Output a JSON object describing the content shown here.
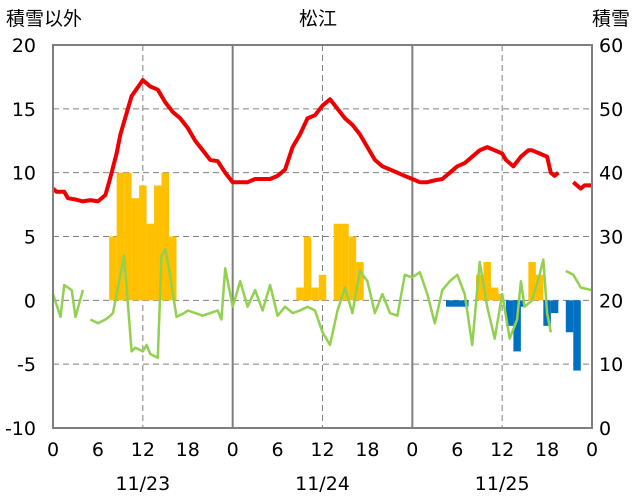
{
  "chart_data": {
    "type": "line",
    "title": "松江",
    "left_axis_label": "積雪以外",
    "right_axis_label": "積雪",
    "left_ylim": [
      -10,
      20
    ],
    "left_yticks": [
      "20",
      "15",
      "10",
      "5",
      "0",
      "-5",
      "-10"
    ],
    "right_ylim": [
      0,
      60
    ],
    "right_yticks": [
      "60",
      "50",
      "40",
      "30",
      "20",
      "10",
      "0"
    ],
    "x_range_hours": [
      0,
      72
    ],
    "x_tick_labels": [
      "0",
      "6",
      "12",
      "18",
      "0",
      "6",
      "12",
      "18",
      "0",
      "6",
      "12",
      "18",
      "0"
    ],
    "dates": [
      "11/23",
      "11/24",
      "11/25"
    ],
    "grid": true,
    "colors": {
      "snow_depth": "#ee0000",
      "temperature": "#92d050",
      "increase": "#ffc000",
      "decrease": "#0070c0",
      "frame": "#7f7f7f",
      "grid": "#808080"
    },
    "series": [
      {
        "axis": "right",
        "role": "snow depth (red line)",
        "points": [
          [
            0,
            37.5
          ],
          [
            0.5,
            37.0
          ],
          [
            1.5,
            37.0
          ],
          [
            2,
            36.0
          ],
          [
            3,
            35.8
          ],
          [
            4,
            35.5
          ],
          [
            5,
            35.7
          ],
          [
            6,
            35.5
          ],
          [
            7,
            36.5
          ],
          [
            7.5,
            38.5
          ],
          [
            8.5,
            43.0
          ],
          [
            9,
            46.0
          ],
          [
            10.5,
            52.0
          ],
          [
            12,
            54.5
          ],
          [
            13,
            53.5
          ],
          [
            14,
            53.0
          ],
          [
            15,
            51.0
          ],
          [
            16,
            49.5
          ],
          [
            17,
            48.5
          ],
          [
            18,
            47.0
          ],
          [
            19,
            45.0
          ],
          [
            20,
            43.5
          ],
          [
            21,
            42.0
          ],
          [
            22,
            41.8
          ],
          [
            23,
            40.0
          ],
          [
            24,
            38.5
          ],
          [
            25,
            38.5
          ],
          [
            26,
            38.5
          ],
          [
            27,
            39.0
          ],
          [
            28,
            39.0
          ],
          [
            29,
            39.0
          ],
          [
            30,
            39.5
          ],
          [
            31,
            40.5
          ],
          [
            32,
            44.0
          ],
          [
            33,
            46.0
          ],
          [
            34,
            48.5
          ],
          [
            35,
            49.0
          ],
          [
            36,
            50.5
          ],
          [
            37,
            51.5
          ],
          [
            38,
            50.0
          ],
          [
            39,
            48.5
          ],
          [
            40,
            47.5
          ],
          [
            41,
            46.0
          ],
          [
            42,
            44.0
          ],
          [
            43,
            42.0
          ],
          [
            44,
            41.0
          ],
          [
            45,
            40.5
          ],
          [
            46,
            40.0
          ],
          [
            47,
            39.5
          ],
          [
            48,
            39.0
          ],
          [
            49,
            38.5
          ],
          [
            50,
            38.5
          ],
          [
            51,
            38.8
          ],
          [
            52,
            39.0
          ],
          [
            53,
            40.0
          ],
          [
            54,
            41.0
          ],
          [
            55,
            41.5
          ],
          [
            56,
            42.5
          ],
          [
            57,
            43.5
          ],
          [
            58,
            44.0
          ],
          [
            59,
            43.5
          ],
          [
            60,
            43.0
          ],
          [
            60.5,
            42.0
          ],
          [
            61.5,
            41.0
          ],
          [
            62.5,
            42.5
          ],
          [
            63,
            43.0
          ],
          [
            63.5,
            43.5
          ],
          [
            64,
            43.5
          ],
          [
            65,
            43.0
          ],
          [
            66,
            42.5
          ],
          [
            66.5,
            40.0
          ],
          [
            67,
            39.5
          ],
          [
            67.5,
            40.0
          ],
          null,
          [
            69.5,
            38.5
          ],
          [
            70.5,
            37.5
          ],
          [
            71,
            38.0
          ],
          [
            72,
            38.0
          ]
        ]
      },
      {
        "axis": "left",
        "role": "temperature (green line)",
        "points": [
          [
            0,
            0.5
          ],
          [
            1,
            -1.3
          ],
          [
            1.5,
            1.2
          ],
          [
            2.5,
            0.8
          ],
          [
            3,
            -1.3
          ],
          [
            4,
            0.8
          ],
          null,
          [
            5,
            -1.5
          ],
          [
            6,
            -1.8
          ],
          [
            7,
            -1.5
          ],
          [
            7.5,
            -1.3
          ],
          [
            8,
            -1.0
          ],
          [
            9.5,
            3.5
          ],
          [
            10.5,
            -4.0
          ],
          [
            11,
            -3.7
          ],
          [
            12,
            -4.0
          ],
          [
            12.5,
            -3.5
          ],
          [
            13,
            -4.2
          ],
          [
            14,
            -4.5
          ],
          [
            14.5,
            3.5
          ],
          [
            15,
            4.0
          ],
          [
            15.5,
            2.5
          ],
          [
            16.5,
            -1.3
          ],
          [
            17.5,
            -1.0
          ],
          [
            18,
            -0.8
          ],
          [
            19,
            -1.0
          ],
          [
            20,
            -1.2
          ],
          [
            21,
            -1.0
          ],
          [
            22,
            -0.8
          ],
          [
            22.5,
            -1.5
          ],
          [
            23,
            2.5
          ],
          [
            24,
            -0.5
          ],
          [
            25,
            1.5
          ],
          [
            26,
            -0.5
          ],
          [
            27,
            0.8
          ],
          [
            28,
            -0.8
          ],
          [
            29,
            1.2
          ],
          [
            30,
            -1.2
          ],
          [
            31,
            -0.5
          ],
          [
            32,
            -1.0
          ],
          [
            33,
            -0.8
          ],
          [
            34,
            -0.5
          ],
          [
            35,
            -0.8
          ],
          [
            36,
            -2.5
          ],
          [
            37,
            -3.5
          ],
          [
            38,
            -0.8
          ],
          [
            39,
            1.0
          ],
          [
            40,
            -1.0
          ],
          [
            41,
            2.3
          ],
          [
            42,
            1.5
          ],
          [
            43,
            -1.0
          ],
          [
            44,
            0.5
          ],
          [
            45,
            -1.0
          ],
          [
            46,
            -1.2
          ],
          [
            47,
            2.0
          ],
          [
            48,
            1.8
          ],
          [
            49,
            2.2
          ],
          [
            50,
            0.5
          ],
          [
            51,
            -1.8
          ],
          [
            52,
            0.8
          ],
          [
            53,
            1.5
          ],
          [
            54,
            2.0
          ],
          [
            55,
            0.5
          ],
          [
            56,
            -3.5
          ],
          [
            57,
            3.0
          ],
          [
            58,
            -0.5
          ],
          [
            59,
            -3.0
          ],
          [
            60,
            0.5
          ],
          [
            61,
            -3.0
          ],
          [
            62,
            -1.5
          ],
          [
            62.5,
            1.5
          ],
          [
            63,
            -0.5
          ],
          [
            64,
            0.0
          ],
          [
            65,
            2.0
          ],
          [
            65.5,
            3.2
          ],
          [
            66,
            -1.0
          ],
          [
            66.5,
            -2.5
          ],
          null,
          [
            68.5,
            2.3
          ],
          [
            69.5,
            2.0
          ],
          [
            70.5,
            1.0
          ],
          [
            72,
            0.8
          ]
        ]
      }
    ],
    "bars": [
      [
        8,
        5.0
      ],
      [
        9,
        10.0
      ],
      [
        10,
        10.0
      ],
      [
        11,
        8.0
      ],
      [
        12,
        9.0
      ],
      [
        13,
        6.0
      ],
      [
        14,
        9.0
      ],
      [
        15,
        10.0
      ],
      [
        16,
        5.0
      ],
      [
        33,
        1.0
      ],
      [
        34,
        5.0
      ],
      [
        35,
        1.0
      ],
      [
        36,
        2.0
      ],
      [
        38,
        6.0
      ],
      [
        39,
        6.0
      ],
      [
        40,
        5.0
      ],
      [
        41,
        3.0
      ],
      [
        53,
        -0.5
      ],
      [
        54,
        -0.5
      ],
      [
        55,
        -0.5
      ],
      [
        57,
        2.0
      ],
      [
        58,
        3.0
      ],
      [
        59,
        1.0
      ],
      [
        59.5,
        0.5
      ],
      [
        61,
        -2.0
      ],
      [
        62,
        -4.0
      ],
      [
        62.5,
        -0.5
      ],
      [
        64,
        3.0
      ],
      [
        65,
        2.0
      ],
      [
        66,
        -2.0
      ],
      [
        67,
        -1.0
      ],
      [
        69,
        -2.5
      ],
      [
        70,
        -5.5
      ]
    ]
  }
}
